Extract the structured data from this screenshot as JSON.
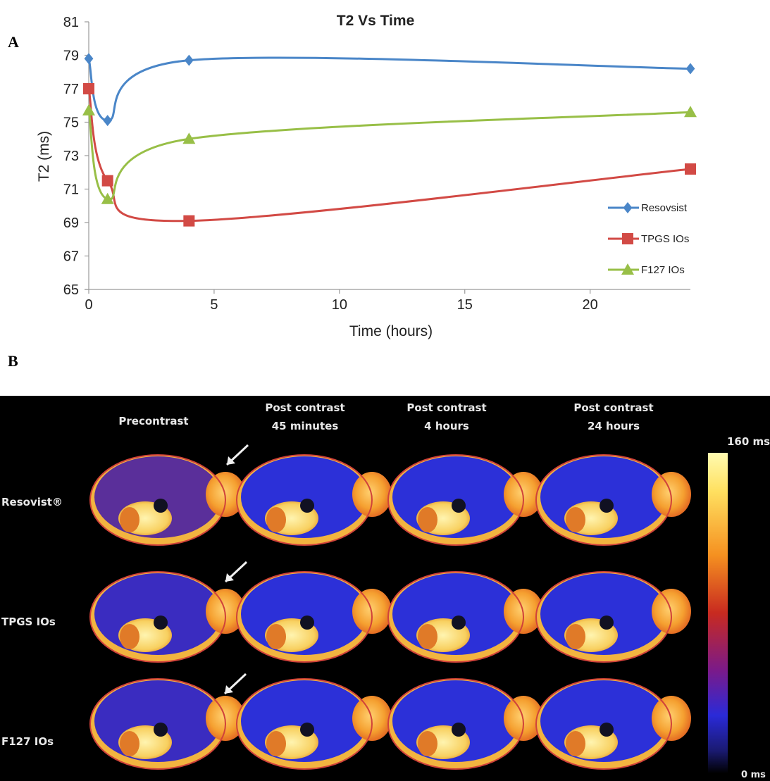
{
  "panel_labels": {
    "a": "A",
    "b": "B"
  },
  "chart_data": {
    "type": "line",
    "title": "T2 Vs Time",
    "xlabel": "Time (hours)",
    "ylabel": "T2 (ms)",
    "xlim": [
      0,
      24
    ],
    "ylim": [
      65,
      81
    ],
    "x_ticks": [
      0,
      5,
      10,
      15,
      20
    ],
    "y_ticks": [
      65,
      67,
      69,
      71,
      73,
      75,
      77,
      79,
      81
    ],
    "grid": false,
    "legend_position": "bottom-right",
    "series": [
      {
        "name": "Resovsist",
        "color": "#4a86c8",
        "marker": "diamond",
        "x": [
          0,
          0.75,
          4,
          24
        ],
        "y": [
          78.8,
          75.1,
          78.7,
          78.2
        ]
      },
      {
        "name": "TPGS IOs",
        "color": "#d24a45",
        "marker": "square",
        "x": [
          0,
          0.75,
          4,
          24
        ],
        "y": [
          77.0,
          71.5,
          69.1,
          72.2
        ]
      },
      {
        "name": "F127 IOs",
        "color": "#98bf47",
        "marker": "triangle",
        "x": [
          0,
          0.75,
          4,
          24
        ],
        "y": [
          75.7,
          70.4,
          74.0,
          75.6
        ]
      }
    ]
  },
  "mri_figure": {
    "column_headers": [
      [
        "Precontrast"
      ],
      [
        "Post contrast",
        "45 minutes"
      ],
      [
        "Post contrast",
        "4 hours"
      ],
      [
        "Post contrast",
        "24 hours"
      ]
    ],
    "row_labels": [
      "Resovist®",
      "TPGS IOs",
      "F127 IOs"
    ],
    "colorbar": {
      "max_label": "160 ms",
      "min_label": "0 ms"
    }
  }
}
